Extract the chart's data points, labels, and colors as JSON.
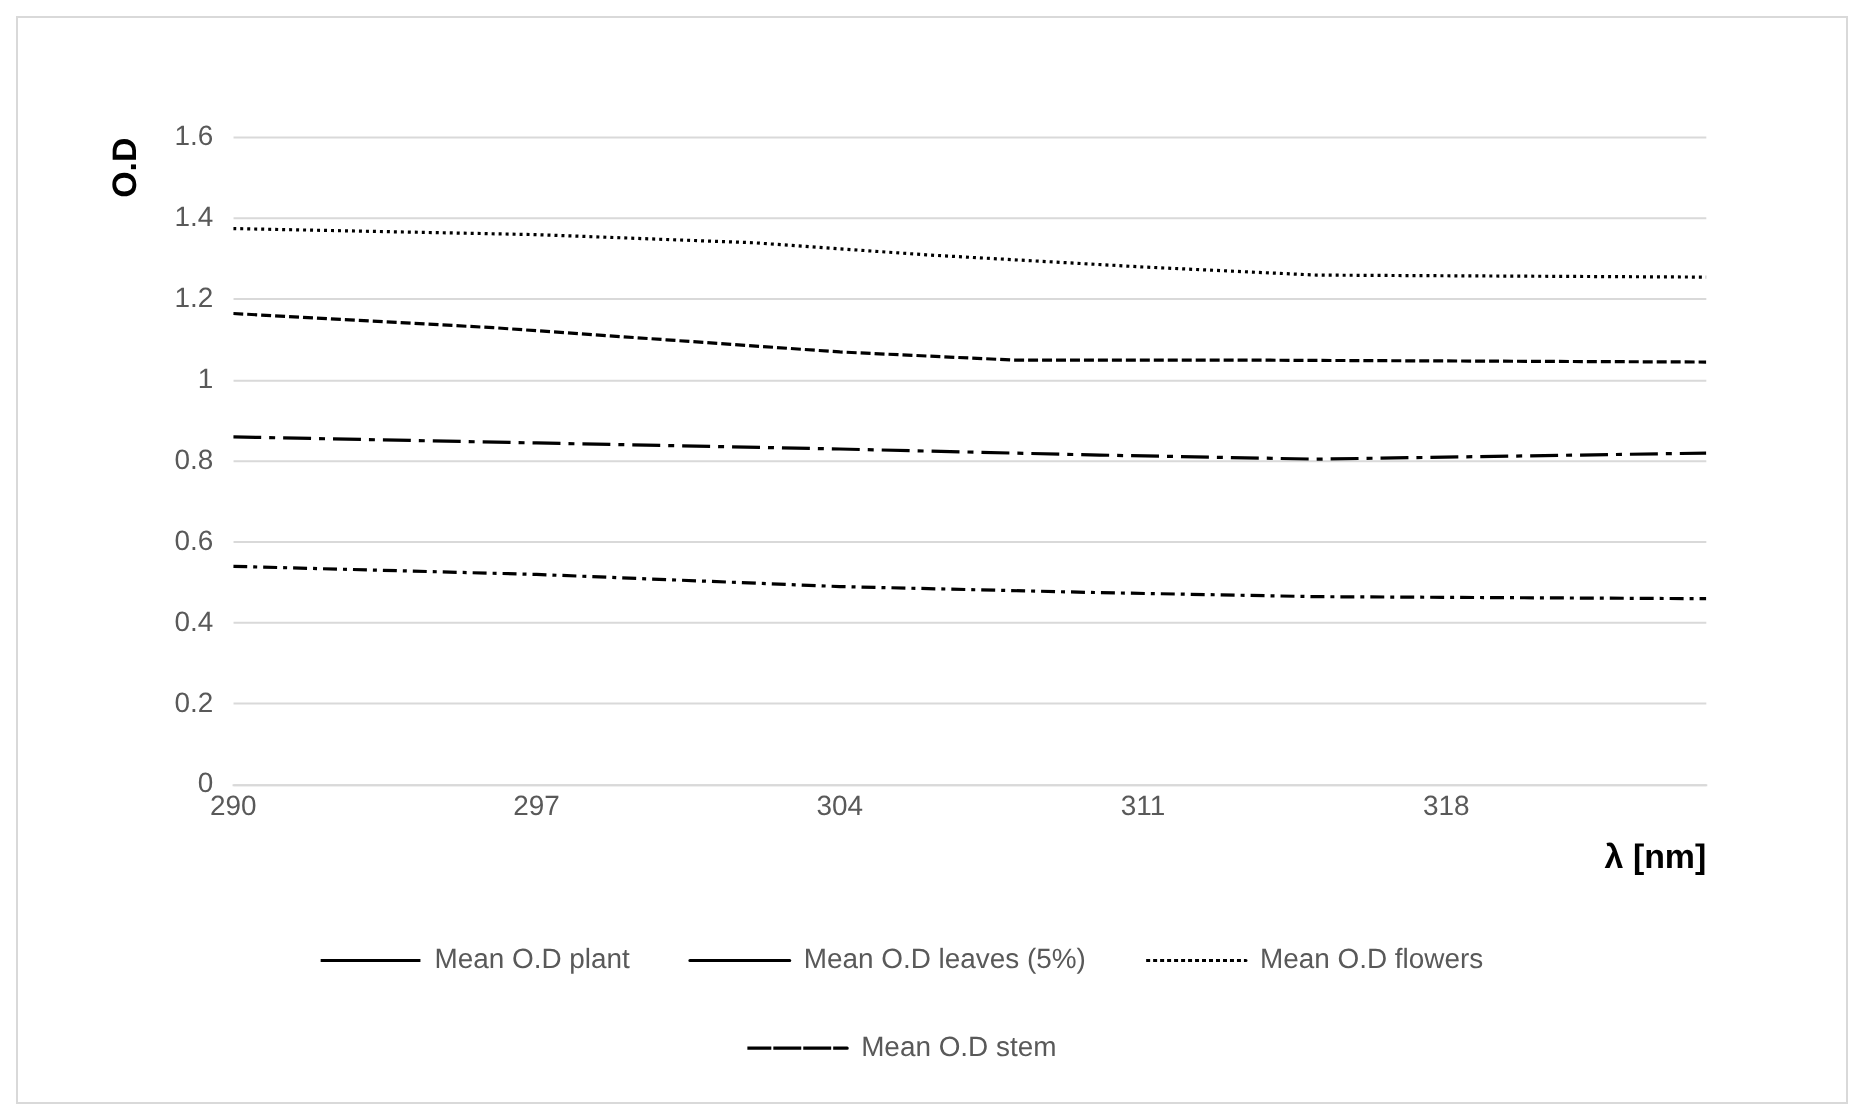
{
  "chart_data": {
    "type": "line",
    "xlabel": "λ [nm]",
    "ylabel": "O.D",
    "xlim": [
      290,
      324
    ],
    "xticks": [
      290,
      297,
      304,
      311,
      318
    ],
    "ylim": [
      0,
      1.6
    ],
    "yticks": [
      0,
      0.2,
      0.4,
      0.6,
      0.8,
      1,
      1.2,
      1.4,
      1.6
    ],
    "grid": "y",
    "legend": "bottom",
    "marker": "none",
    "series": [
      {
        "name": "Mean O.D plant",
        "color": "#000000",
        "line_style": "dashed",
        "x": [
          290,
          297,
          304,
          310,
          315,
          324
        ],
        "values": [
          0.86,
          0.845,
          0.83,
          0.815,
          0.805,
          0.82
        ]
      },
      {
        "name": "Mean O.D leaves (5%)",
        "color": "#000000",
        "line_style": "dashed",
        "x": [
          290,
          296,
          300,
          304,
          308,
          313,
          324
        ],
        "values": [
          1.165,
          1.13,
          1.1,
          1.07,
          1.05,
          1.05,
          1.045
        ]
      },
      {
        "name": "Mean O.D flowers",
        "color": "#000000",
        "line_style": "dotted",
        "x": [
          290,
          297,
          302,
          306,
          311,
          315,
          324
        ],
        "values": [
          1.375,
          1.36,
          1.34,
          1.31,
          1.28,
          1.26,
          1.255
        ]
      },
      {
        "name": "Mean O.D stem",
        "color": "#000000",
        "line_style": "dashed",
        "x": [
          290,
          297,
          304,
          310,
          315,
          324
        ],
        "values": [
          0.54,
          0.52,
          0.49,
          0.475,
          0.465,
          0.46
        ]
      }
    ]
  }
}
